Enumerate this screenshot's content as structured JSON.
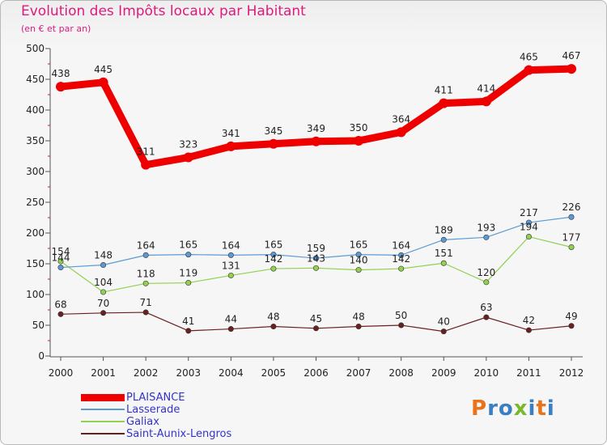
{
  "chart_data": {
    "type": "line",
    "title": "Evolution des Impôts locaux par Habitant",
    "subtitle": "(en € et par an)",
    "xlabel": "",
    "ylabel": "",
    "x": [
      "2000",
      "2001",
      "2002",
      "2003",
      "2004",
      "2005",
      "2006",
      "2007",
      "2008",
      "2009",
      "2010",
      "2011",
      "2012"
    ],
    "ylim": [
      0,
      500
    ],
    "yticks": [
      0,
      50,
      100,
      150,
      200,
      250,
      300,
      350,
      400,
      450,
      500
    ],
    "grid": false,
    "legend_position": "bottom-left",
    "series": [
      {
        "name": "PLAISANCE",
        "color": "#ee0000",
        "values": [
          438,
          445,
          311,
          323,
          341,
          345,
          349,
          350,
          364,
          411,
          414,
          465,
          467
        ]
      },
      {
        "name": "Lasserade",
        "color": "#5b9bd5",
        "values": [
          144,
          148,
          164,
          165,
          164,
          165,
          159,
          165,
          164,
          189,
          193,
          217,
          226
        ]
      },
      {
        "name": "Galiax",
        "color": "#92d050",
        "values": [
          154,
          104,
          118,
          119,
          131,
          142,
          143,
          140,
          142,
          151,
          120,
          194,
          177
        ]
      },
      {
        "name": "Saint-Aunix-Lengros",
        "color": "#6b1f1f",
        "values": [
          68,
          70,
          71,
          41,
          44,
          48,
          45,
          48,
          50,
          40,
          63,
          42,
          49
        ]
      }
    ]
  },
  "logo": {
    "text": "Proxiti",
    "colors": [
      "#e8731a",
      "#3a7fc4",
      "#3a7fc4",
      "#79b829",
      "#3a7fc4",
      "#e8731a",
      "#3a7fc4"
    ]
  }
}
